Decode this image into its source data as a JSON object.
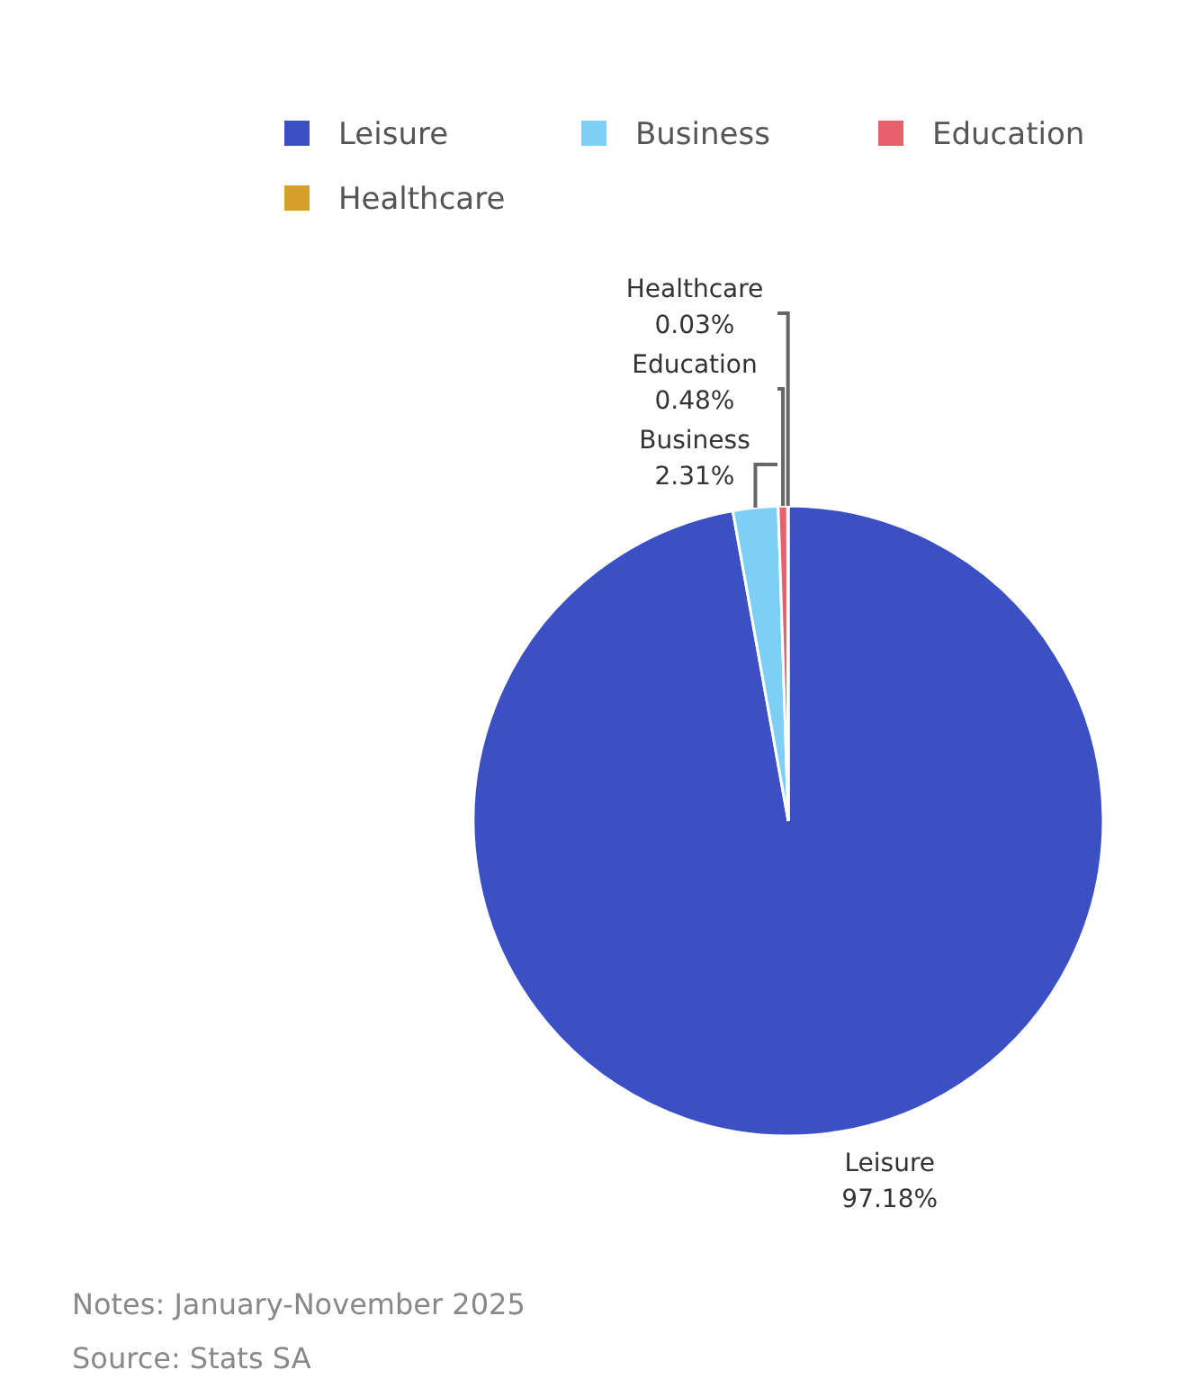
{
  "chart_data": {
    "type": "pie",
    "categories": [
      "Leisure",
      "Business",
      "Education",
      "Healthcare"
    ],
    "values": [
      97.18,
      2.31,
      0.48,
      0.03
    ],
    "colors": [
      "#3a50c4",
      "#7dcff5",
      "#e8606a",
      "#d4a02a"
    ],
    "value_labels": [
      "97.18%",
      "2.31%",
      "0.48%",
      "0.03%"
    ],
    "legend": "top",
    "annotations": [
      "Notes: January-November 2025",
      "Source: Stats SA"
    ]
  }
}
